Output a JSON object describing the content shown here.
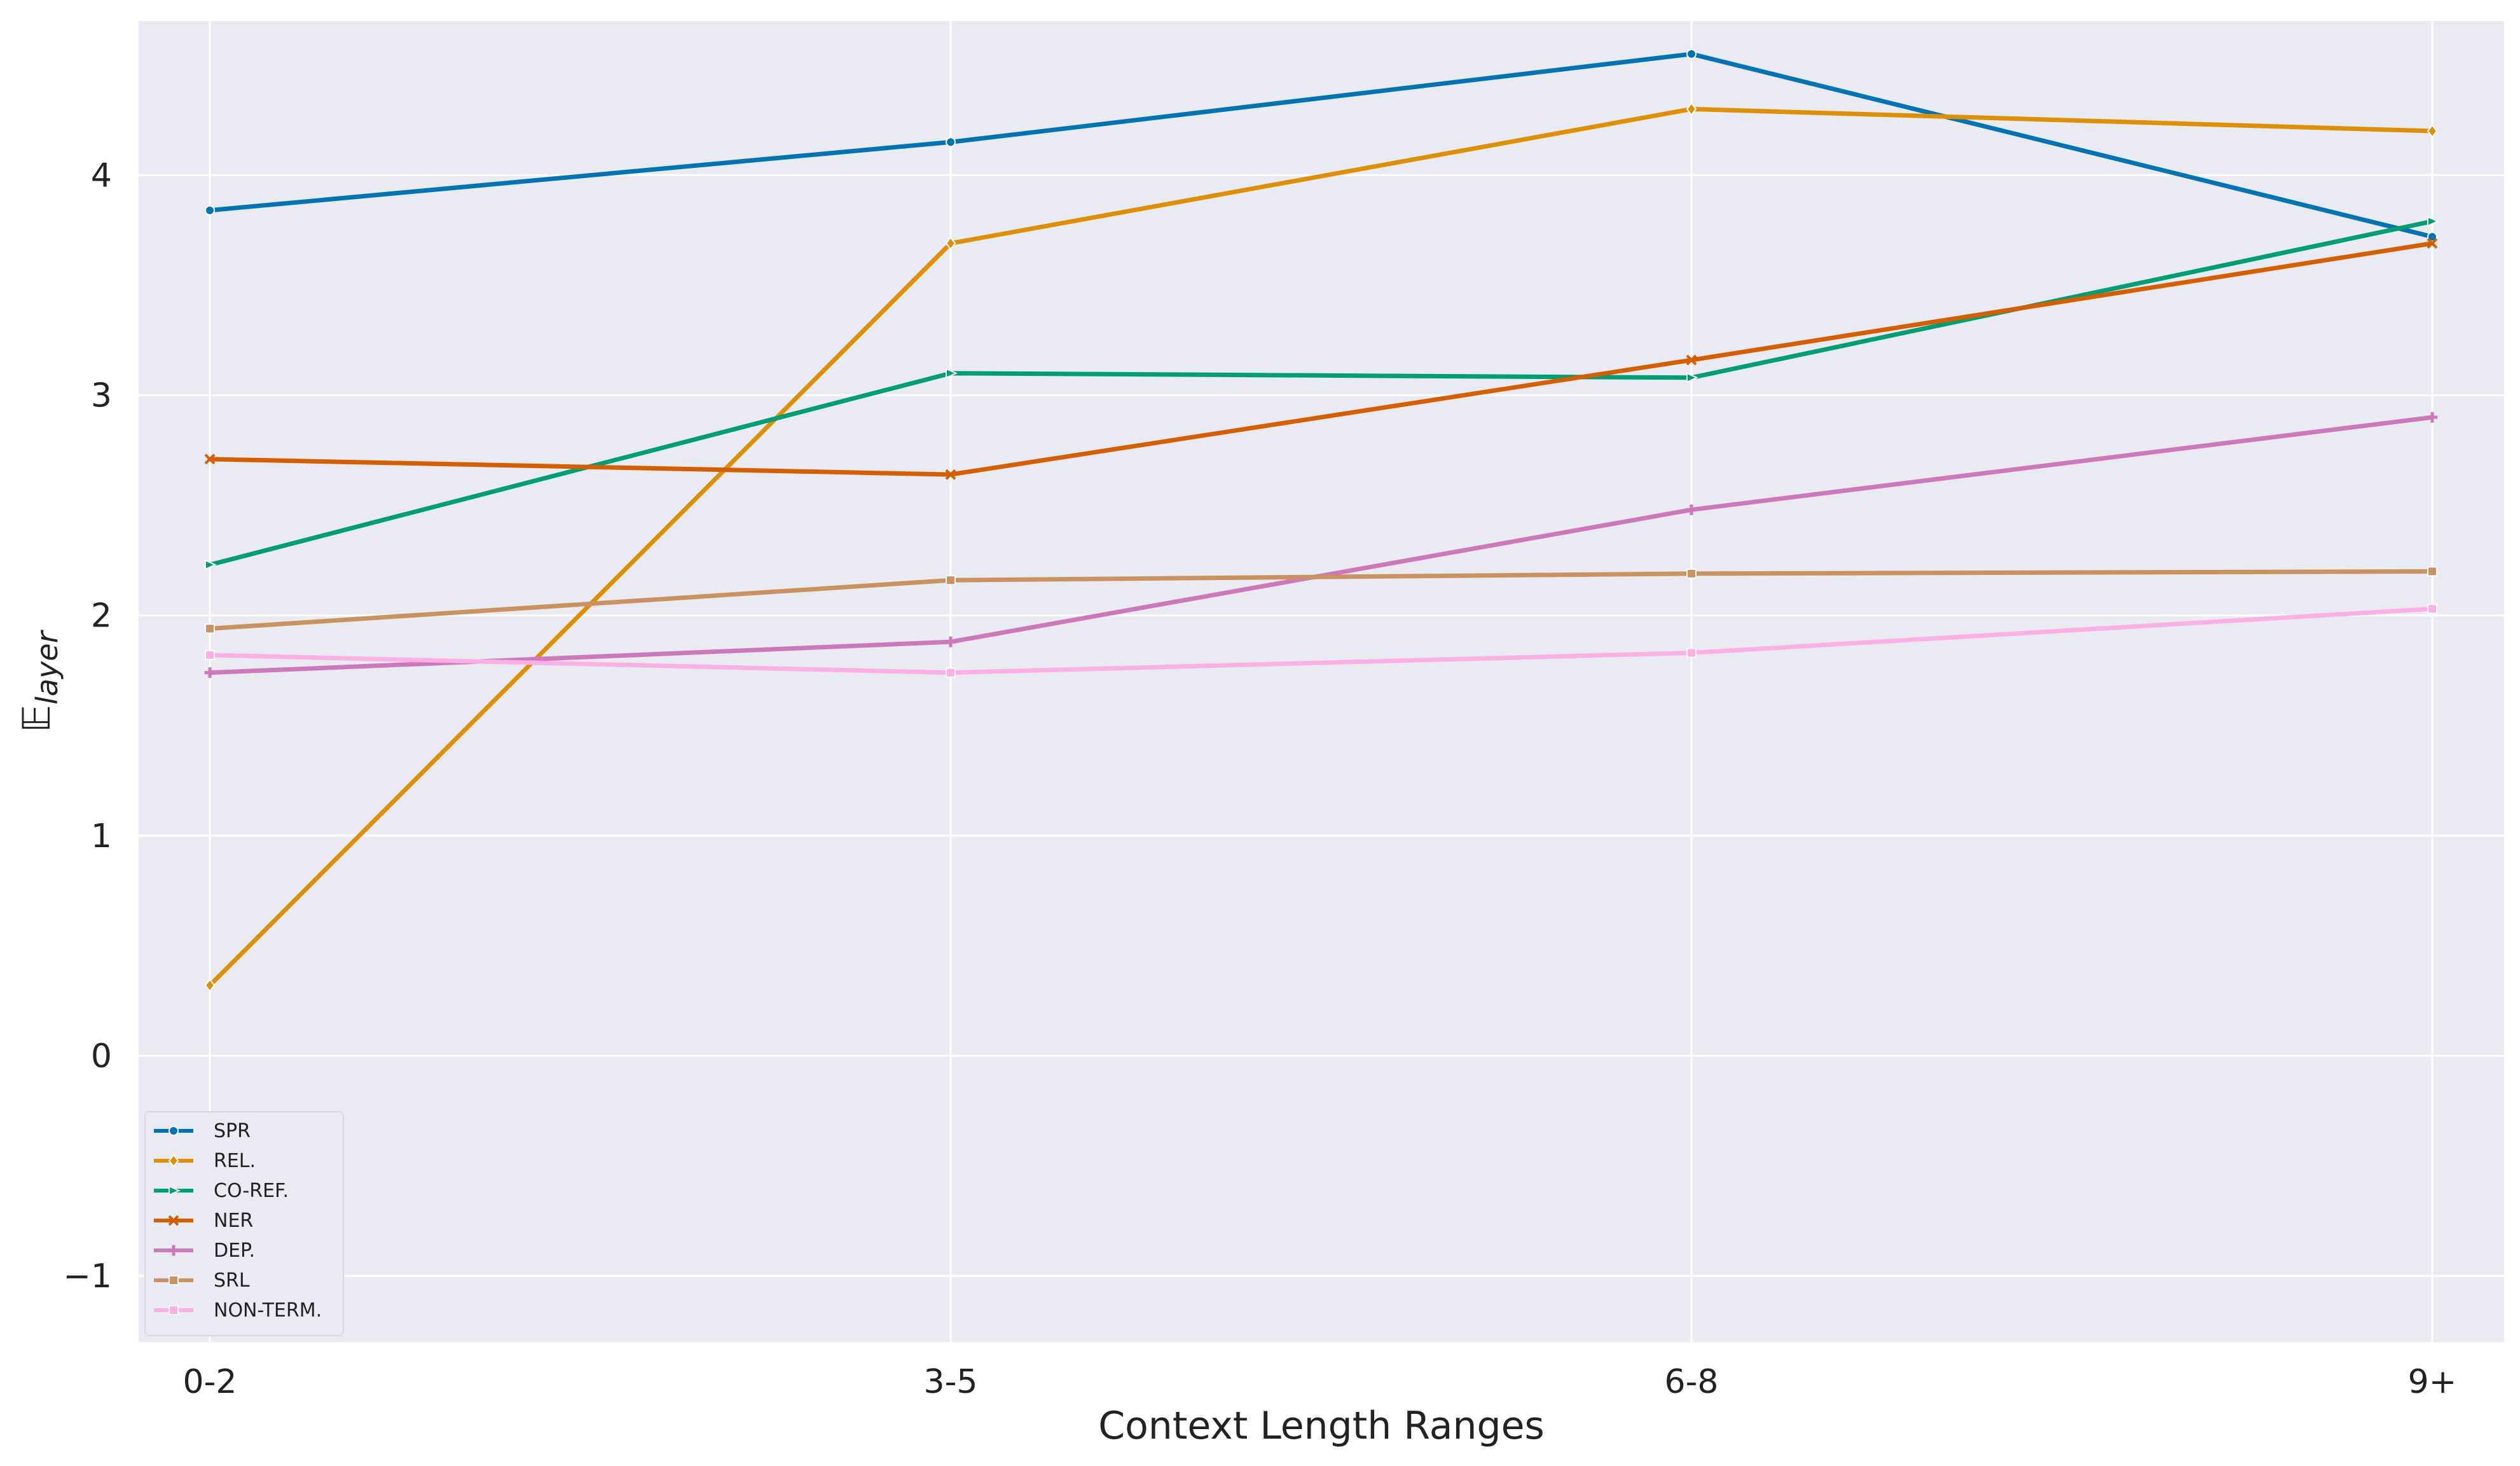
{
  "chart_data": {
    "type": "line",
    "xlabel": "Context Length Ranges",
    "ylabel_main": "𝔼",
    "ylabel_sub": "layer",
    "categories": [
      "0-2",
      "3-5",
      "6-8",
      "9+"
    ],
    "ylim": [
      -1.3,
      4.7
    ],
    "yticks": [
      -1,
      0,
      1,
      2,
      3,
      4
    ],
    "ytick_labels": [
      "−1",
      "0",
      "1",
      "2",
      "3",
      "4"
    ],
    "grid": true,
    "legend_position": "bottom-left",
    "background": "#eaeaf2",
    "series": [
      {
        "name": "SPR",
        "color": "#0173b2",
        "marker": "circle",
        "values": [
          3.84,
          4.15,
          4.55,
          3.72
        ]
      },
      {
        "name": "REL.",
        "color": "#de8f05",
        "marker": "diamond",
        "values": [
          0.32,
          3.69,
          4.3,
          4.2
        ]
      },
      {
        "name": "CO-REF.",
        "color": "#029e73",
        "marker": "triangle-right",
        "values": [
          2.23,
          3.1,
          3.08,
          3.79
        ]
      },
      {
        "name": "NER",
        "color": "#d55e00",
        "marker": "x",
        "values": [
          2.71,
          2.64,
          3.16,
          3.69
        ]
      },
      {
        "name": "DEP.",
        "color": "#cc78bc",
        "marker": "plus",
        "values": [
          1.74,
          1.88,
          2.48,
          2.9
        ]
      },
      {
        "name": "SRL",
        "color": "#ca9161",
        "marker": "square",
        "values": [
          1.94,
          2.16,
          2.19,
          2.2
        ]
      },
      {
        "name": "NON-TERM.",
        "color": "#fbafe4",
        "marker": "square",
        "values": [
          1.82,
          1.74,
          1.83,
          2.03
        ]
      }
    ]
  }
}
